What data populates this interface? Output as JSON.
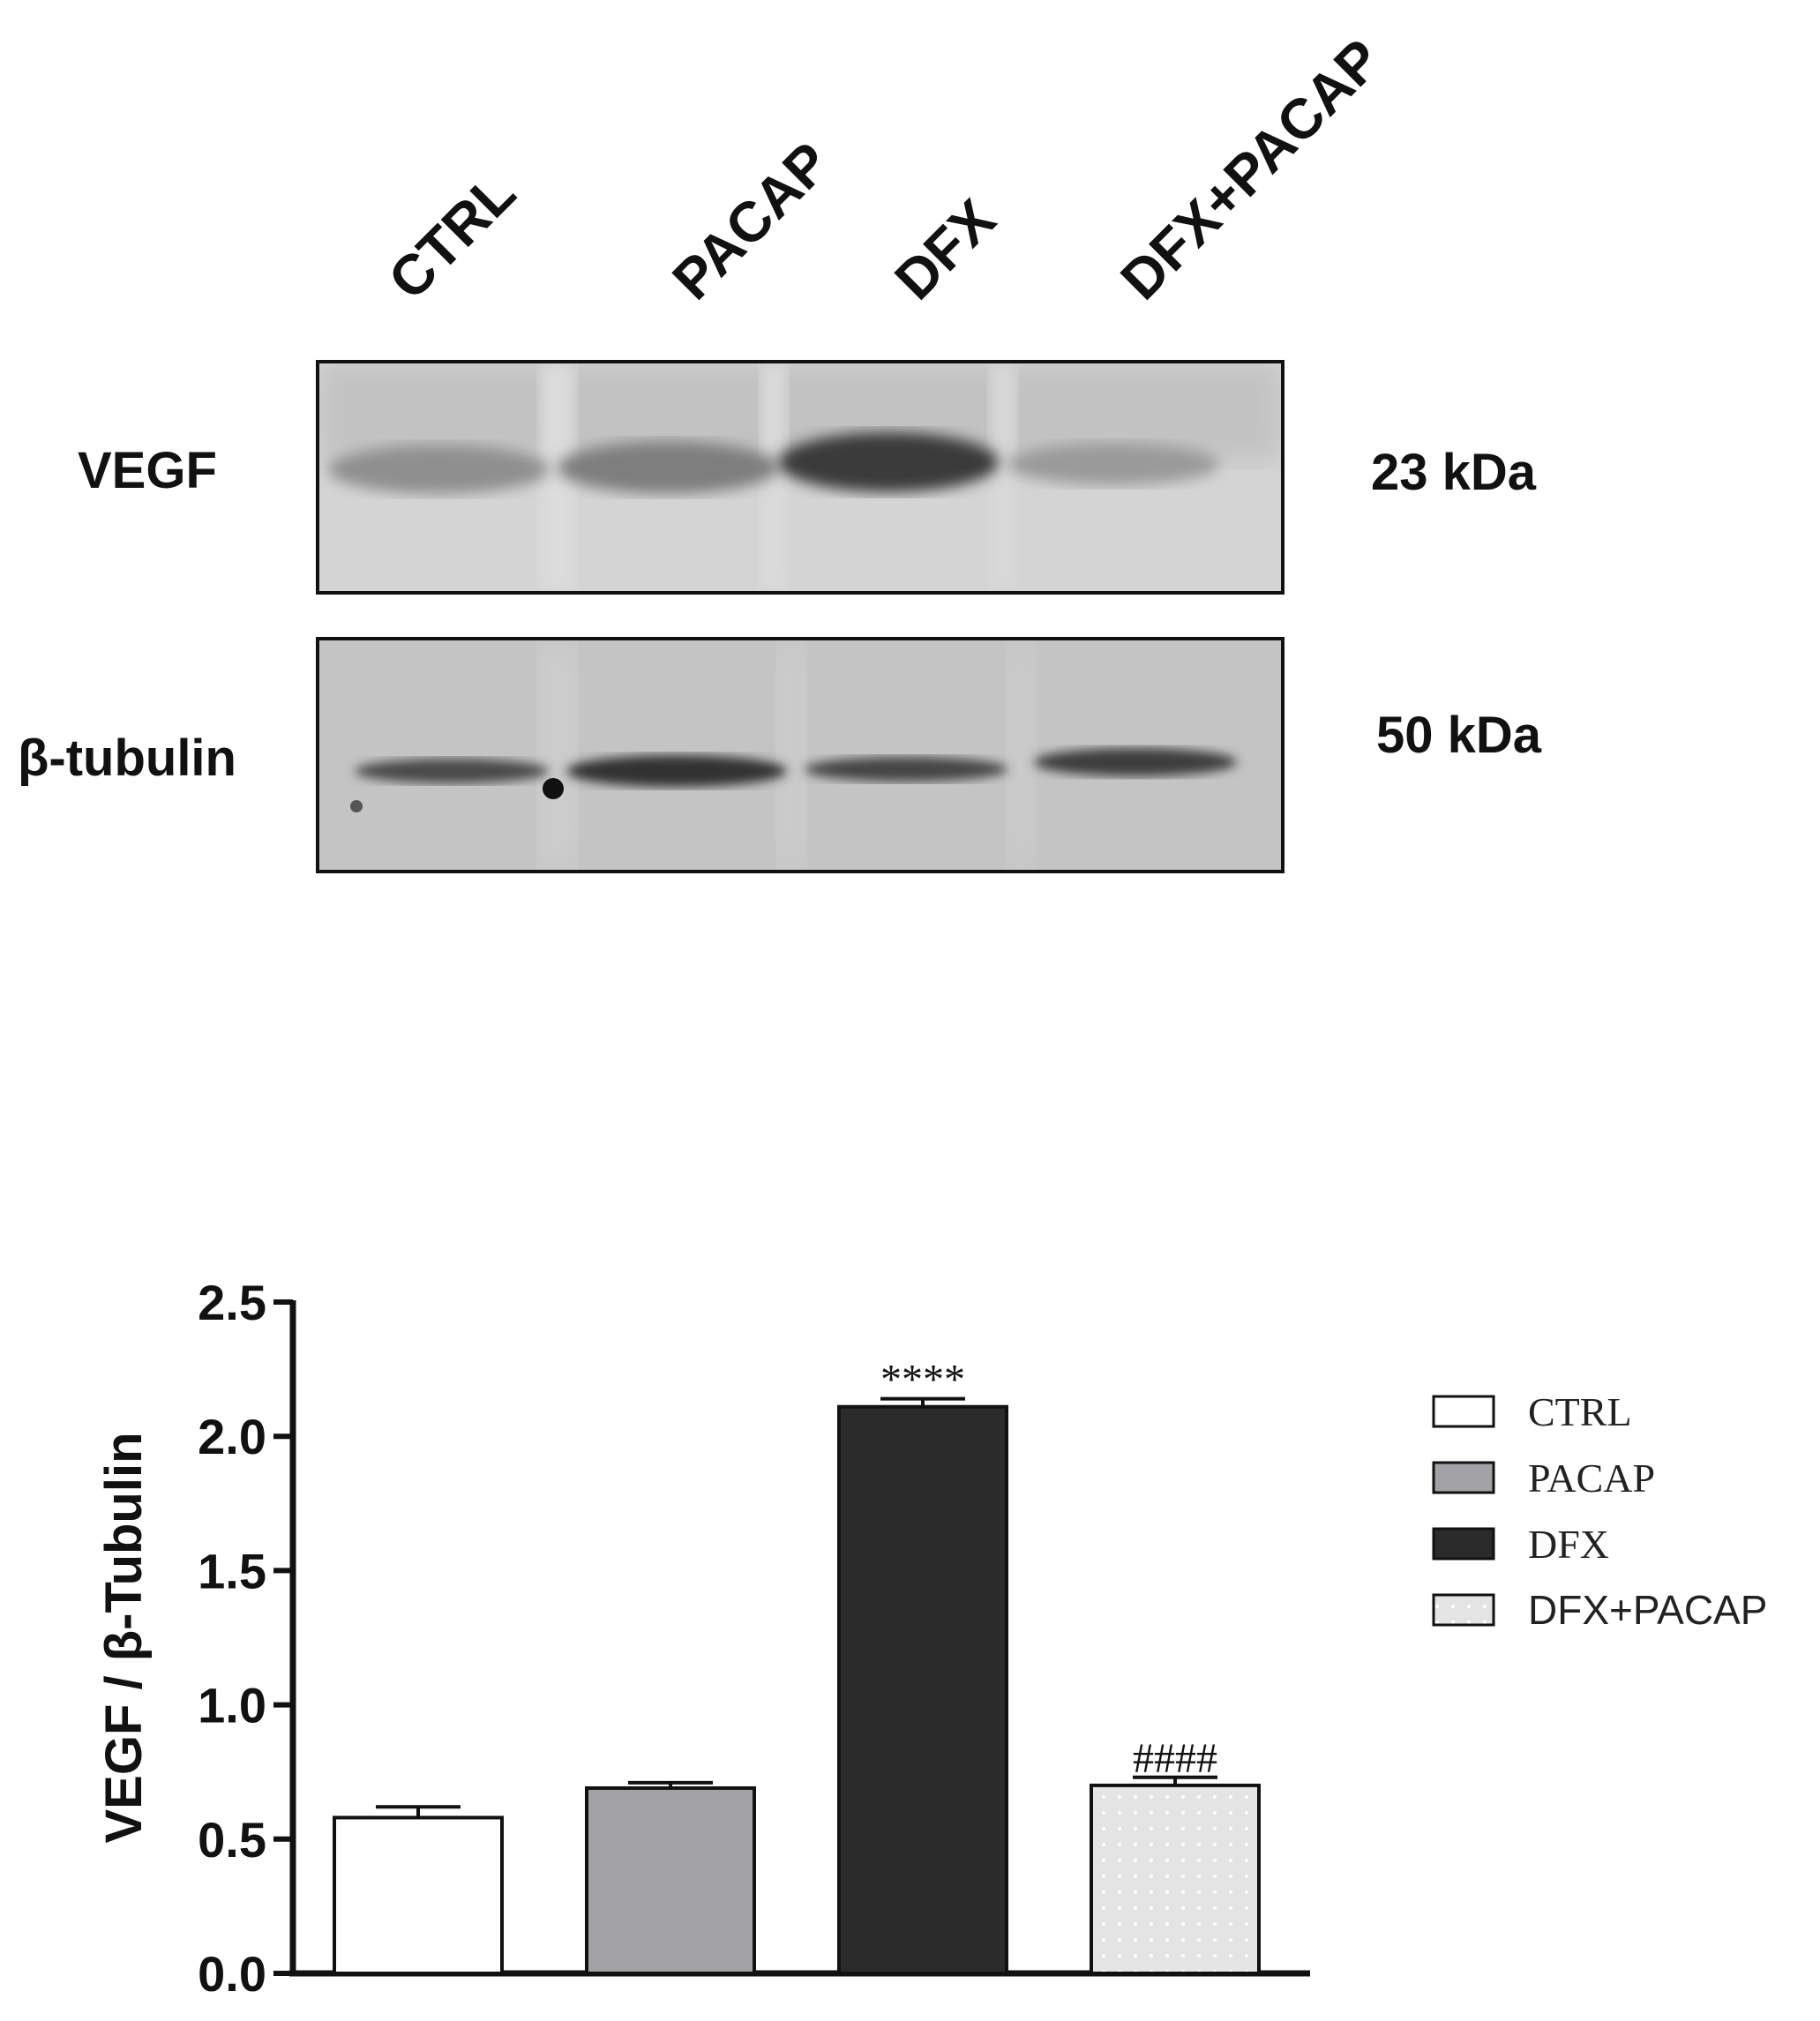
{
  "blot": {
    "lanes": [
      "CTRL",
      "PACAP",
      "DFX",
      "DFX+PACAP"
    ],
    "rows": [
      {
        "label": "VEGF",
        "kda": "23 kDa"
      },
      {
        "label": "β-tubulin",
        "kda": "50 kDa"
      }
    ]
  },
  "chart_data": {
    "type": "bar",
    "categories": [
      "CTRL",
      "PACAP",
      "DFX",
      "DFX+PACAP"
    ],
    "values": [
      0.58,
      0.69,
      2.11,
      0.7
    ],
    "errors": [
      0.04,
      0.02,
      0.03,
      0.03
    ],
    "annotations": [
      "",
      "",
      "****",
      "####"
    ],
    "title": "",
    "xlabel": "",
    "ylabel": "VEGF / β-Tubulin",
    "ylim": [
      0,
      2.5
    ],
    "yticks": [
      "0.0",
      "0.5",
      "1.0",
      "1.5",
      "2.0",
      "2.5"
    ],
    "legend": [
      "CTRL",
      "PACAP",
      "DFX",
      "DFX+PACAP"
    ],
    "legend_position": "right",
    "grid": false,
    "colors": [
      "#ffffff",
      "#a2a1a6",
      "#2b2b2b",
      "#e4e4e4"
    ]
  }
}
